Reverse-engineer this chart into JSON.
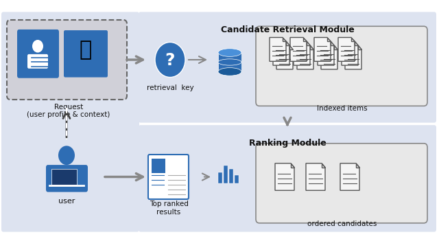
{
  "title": "",
  "bg_left_color": "#dde3f0",
  "bg_right_top_color": "#dde3f0",
  "bg_right_bottom_color": "#dde3f0",
  "box_gray": "#c8c8c8",
  "box_light": "#e8e8e8",
  "blue_dark": "#1a4b8c",
  "blue_mid": "#2e6db4",
  "blue_icon": "#2e6db4",
  "arrow_gray": "#888888",
  "text_black": "#111111",
  "text_dark": "#222222",
  "candidate_retrieval_label": "Candidate Retrieval Module",
  "ranking_label": "Ranking Module",
  "request_label": "Request\n(user profile & context)",
  "retrieval_key_label": "retrieval  key",
  "indexed_items_label": "Indexed items",
  "top_ranked_label": "Top ranked\nresults",
  "ordered_candidates_label": "ordered candidates",
  "user_label": "user"
}
